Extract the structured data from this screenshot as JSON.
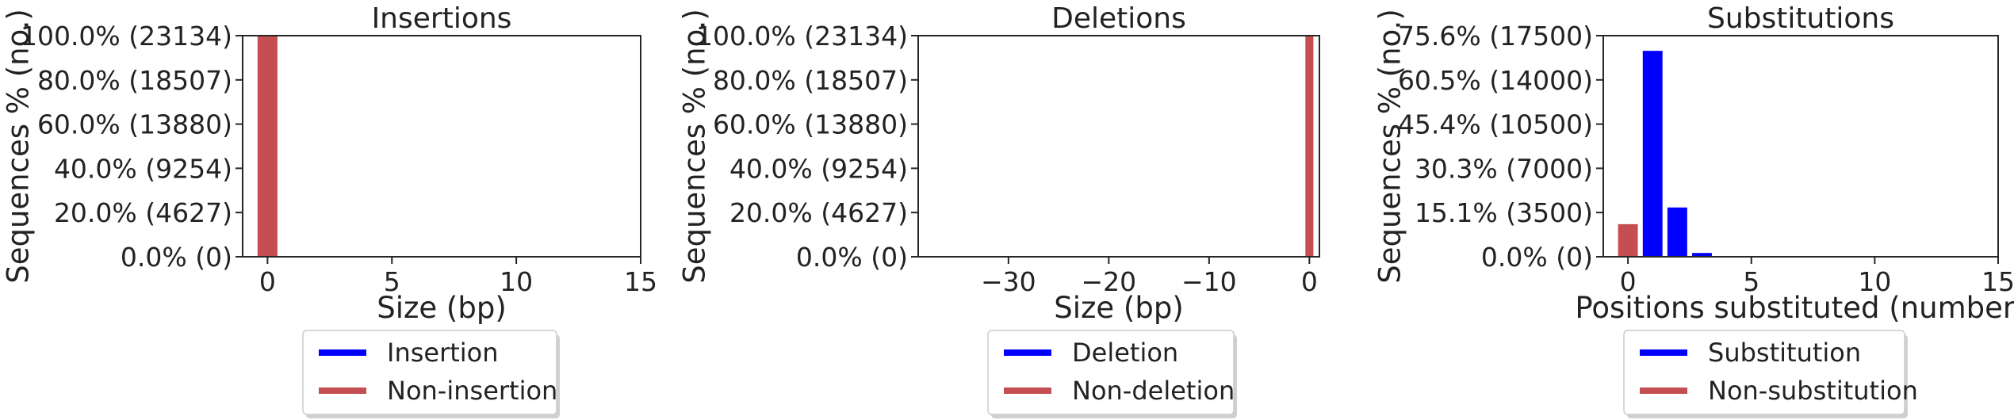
{
  "colors": {
    "mod": "#0000ff",
    "unmod": "#c44e52",
    "axis": "#262626"
  },
  "chart_data": [
    {
      "type": "bar",
      "title": "Insertions",
      "xlabel": "Size (bp)",
      "ylabel": "Sequences % (no.)",
      "xlim": [
        -1,
        15
      ],
      "ylim": [
        0,
        23134
      ],
      "xticks": [
        0,
        5,
        10,
        15
      ],
      "xtick_labels": [
        "0",
        "5",
        "10",
        "15"
      ],
      "yticks": [
        0,
        4627,
        9254,
        13880,
        18507,
        23134
      ],
      "ytick_labels": [
        "0.0% (0)",
        "20.0% (4627)",
        "40.0% (9254)",
        "60.0% (13880)",
        "80.0% (18507)",
        "100.0% (23134)"
      ],
      "bar_width": 0.8,
      "series": [
        {
          "name": "Insertion",
          "x": [],
          "values": []
        },
        {
          "name": "Non-insertion",
          "x": [
            0
          ],
          "values": [
            23134
          ]
        }
      ],
      "legend": "below"
    },
    {
      "type": "bar",
      "title": "Deletions",
      "xlabel": "Size (bp)",
      "ylabel": "Sequences % (no.)",
      "xlim": [
        -39,
        1
      ],
      "ylim": [
        0,
        23134
      ],
      "xticks": [
        -30,
        -20,
        -10,
        0
      ],
      "xtick_labels": [
        "−30",
        "−20",
        "−10",
        "0"
      ],
      "yticks": [
        0,
        4627,
        9254,
        13880,
        18507,
        23134
      ],
      "ytick_labels": [
        "0.0% (0)",
        "20.0% (4627)",
        "40.0% (9254)",
        "60.0% (13880)",
        "80.0% (18507)",
        "100.0% (23134)"
      ],
      "bar_width": 0.8,
      "series": [
        {
          "name": "Deletion",
          "x": [],
          "values": []
        },
        {
          "name": "Non-deletion",
          "x": [
            0
          ],
          "values": [
            23134
          ]
        }
      ],
      "legend": "below"
    },
    {
      "type": "bar",
      "title": "Substitutions",
      "xlabel": "Positions substituted (number)",
      "ylabel": "Sequences % (no.)",
      "xlim": [
        -1,
        15
      ],
      "ylim": [
        0,
        17500
      ],
      "xticks": [
        0,
        5,
        10,
        15
      ],
      "xtick_labels": [
        "0",
        "5",
        "10",
        "15"
      ],
      "yticks": [
        0,
        3500,
        7000,
        10500,
        14000,
        17500
      ],
      "ytick_labels": [
        "0.0% (0)",
        "15.1% (3500)",
        "30.3% (7000)",
        "45.4% (10500)",
        "60.5% (14000)",
        "75.6% (17500)"
      ],
      "bar_width": 0.8,
      "series": [
        {
          "name": "Substitution",
          "x": [
            1,
            2,
            3
          ],
          "values": [
            16300,
            3900,
            300
          ]
        },
        {
          "name": "Non-substitution",
          "x": [
            0
          ],
          "values": [
            2580
          ]
        }
      ],
      "legend": "below"
    }
  ]
}
